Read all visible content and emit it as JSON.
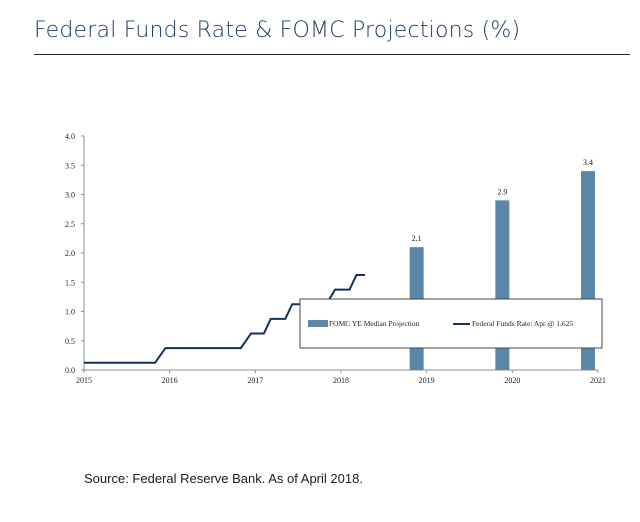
{
  "title": "Federal Funds Rate & FOMC Projections (%)",
  "source": "Source: Federal Reserve Bank. As of April 2018.",
  "colors": {
    "title": "#1f3a63",
    "bar": "#5b86a8",
    "line": "#14315d",
    "axis": "#8c8c8c"
  },
  "chart_data": {
    "type": "bar",
    "title": "",
    "xlabel": "",
    "ylabel": "",
    "ylim": [
      0,
      4.0
    ],
    "yticks": [
      "0.0",
      "0.5",
      "1.0",
      "1.5",
      "2.0",
      "2.5",
      "3.0",
      "3.5",
      "4.0"
    ],
    "xlim": [
      2015,
      2021
    ],
    "xticks": [
      "2015",
      "2016",
      "2017",
      "2018",
      "2019",
      "2020",
      "2021"
    ],
    "grid": false,
    "legend_position": "center-right",
    "series": [
      {
        "name": "FOMC YE Median Projection",
        "type": "bar",
        "x": [
          2019,
          2020,
          2021
        ],
        "values": [
          2.1,
          2.9,
          3.4
        ],
        "labels": [
          "2.1",
          "2.9",
          "3.4"
        ]
      },
      {
        "name": "Federal Funds Rate: Apr @ 1.625",
        "type": "step-line",
        "points": [
          [
            2015.0,
            0.125
          ],
          [
            2015.83,
            0.125
          ],
          [
            2015.95,
            0.375
          ],
          [
            2016.83,
            0.375
          ],
          [
            2016.95,
            0.625
          ],
          [
            2017.1,
            0.625
          ],
          [
            2017.18,
            0.875
          ],
          [
            2017.35,
            0.875
          ],
          [
            2017.43,
            1.125
          ],
          [
            2017.83,
            1.125
          ],
          [
            2017.93,
            1.375
          ],
          [
            2018.1,
            1.375
          ],
          [
            2018.18,
            1.625
          ],
          [
            2018.28,
            1.625
          ]
        ]
      }
    ]
  }
}
